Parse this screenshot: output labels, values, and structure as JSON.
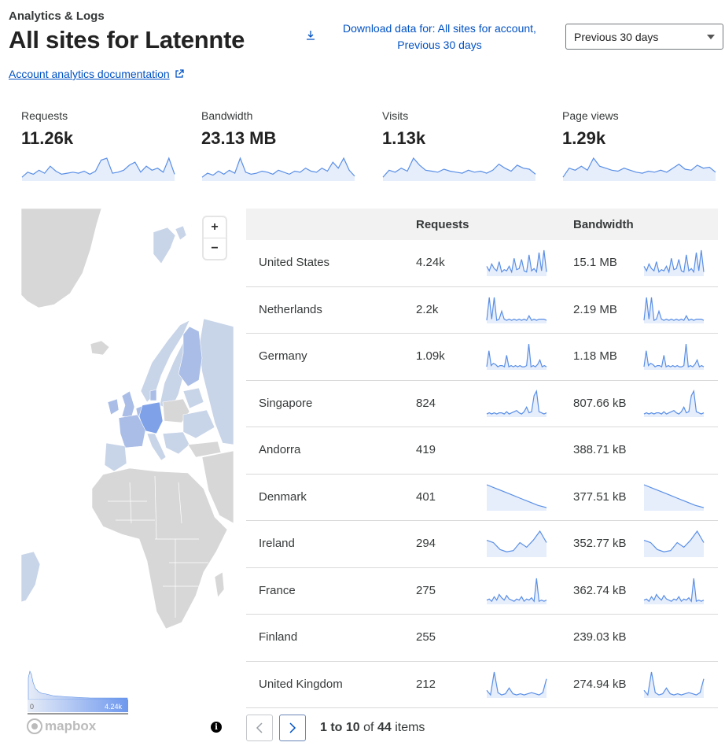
{
  "header": {
    "breadcrumb": "Analytics & Logs",
    "title_prefix": "All sites for",
    "account_name": "Latennte",
    "doc_link": "Account analytics documentation",
    "download_label": "Download data for: All sites for account, Previous 30 days",
    "time_range": "Previous 30 days"
  },
  "stats": [
    {
      "label": "Requests",
      "value": "11.26k",
      "spark": [
        3,
        8,
        6,
        10,
        7,
        14,
        9,
        6,
        7,
        8,
        7,
        9,
        6,
        9,
        20,
        22,
        7,
        8,
        10,
        15,
        18,
        8,
        14,
        10,
        12,
        8,
        22,
        6
      ]
    },
    {
      "label": "Bandwidth",
      "value": "23.13 MB",
      "spark": [
        3,
        7,
        5,
        9,
        6,
        10,
        7,
        22,
        8,
        6,
        7,
        9,
        8,
        6,
        10,
        8,
        6,
        9,
        8,
        12,
        9,
        8,
        12,
        9,
        18,
        12,
        22,
        10,
        4
      ]
    },
    {
      "label": "Visits",
      "value": "1.13k",
      "spark": [
        3,
        10,
        8,
        12,
        9,
        22,
        15,
        10,
        9,
        8,
        11,
        9,
        8,
        7,
        10,
        8,
        9,
        7,
        10,
        16,
        12,
        9,
        15,
        12,
        11,
        6
      ]
    },
    {
      "label": "Page views",
      "value": "1.29k",
      "spark": [
        3,
        12,
        10,
        14,
        10,
        22,
        14,
        12,
        10,
        9,
        12,
        10,
        8,
        7,
        9,
        8,
        10,
        8,
        12,
        16,
        11,
        10,
        15,
        12,
        13,
        8
      ]
    }
  ],
  "map": {
    "zoom_in": "+",
    "zoom_out": "−",
    "legend_min": "0",
    "legend_max": "4.24k",
    "attribution": "mapbox"
  },
  "table": {
    "headers": {
      "requests": "Requests",
      "bandwidth": "Bandwidth"
    },
    "rows": [
      {
        "country": "United States",
        "requests": "4.24k",
        "bandwidth": "15.1 MB",
        "spark": [
          8,
          4,
          10,
          6,
          4,
          12,
          3,
          5,
          4,
          8,
          3,
          15,
          5,
          6,
          14,
          4,
          3,
          18,
          4,
          6,
          3,
          20,
          4,
          22,
          3
        ]
      },
      {
        "country": "Netherlands",
        "requests": "2.2k",
        "bandwidth": "2.19 MB",
        "spark": [
          2,
          22,
          3,
          22,
          2,
          3,
          10,
          3,
          2,
          3,
          2,
          3,
          2,
          3,
          2,
          3,
          2,
          6,
          2,
          3,
          2,
          3,
          3,
          3,
          2
        ]
      },
      {
        "country": "Germany",
        "requests": "1.09k",
        "bandwidth": "1.18 MB",
        "spark": [
          2,
          16,
          3,
          5,
          4,
          2,
          3,
          3,
          2,
          12,
          2,
          3,
          2,
          3,
          2,
          3,
          2,
          2,
          3,
          22,
          2,
          3,
          2,
          4,
          8,
          2,
          3,
          2
        ]
      },
      {
        "country": "Singapore",
        "requests": "824",
        "bandwidth": "807.66 kB",
        "spark": [
          2,
          3,
          2,
          3,
          2,
          3,
          3,
          2,
          4,
          2,
          3,
          4,
          5,
          3,
          2,
          4,
          8,
          3,
          4,
          18,
          22,
          4,
          3,
          2,
          3
        ]
      },
      {
        "country": "Andorra",
        "requests": "419",
        "bandwidth": "388.71 kB",
        "spark": []
      },
      {
        "country": "Denmark",
        "requests": "401",
        "bandwidth": "377.51 kB",
        "spark": [
          22,
          19,
          16,
          13,
          10,
          7,
          4,
          2
        ]
      },
      {
        "country": "Ireland",
        "requests": "294",
        "bandwidth": "352.77 kB",
        "spark": [
          14,
          12,
          6,
          4,
          5,
          12,
          8,
          14,
          22,
          12
        ]
      },
      {
        "country": "France",
        "requests": "275",
        "bandwidth": "362.74 kB",
        "spark": [
          3,
          4,
          2,
          6,
          3,
          8,
          5,
          3,
          7,
          4,
          3,
          2,
          4,
          3,
          6,
          2,
          4,
          3,
          5,
          2,
          22,
          2,
          3,
          2,
          3
        ]
      },
      {
        "country": "Finland",
        "requests": "255",
        "bandwidth": "239.03 kB",
        "spark": []
      },
      {
        "country": "United Kingdom",
        "requests": "212",
        "bandwidth": "274.94 kB",
        "spark": [
          6,
          2,
          22,
          4,
          2,
          3,
          8,
          3,
          2,
          3,
          2,
          3,
          4,
          3,
          2,
          4,
          16
        ]
      }
    ]
  },
  "pagination": {
    "range": "1 to 10",
    "of": "of",
    "total": "44",
    "suffix": "items"
  },
  "colors": {
    "accent": "#0051c3",
    "spark": "#5a8fe6",
    "spark_fill": "#e6eefc",
    "land": "#d7d7d7",
    "choropleth_light": "#c8d4e8",
    "choropleth_mid": "#a9bde6",
    "choropleth_strong": "#7ea1e8"
  }
}
